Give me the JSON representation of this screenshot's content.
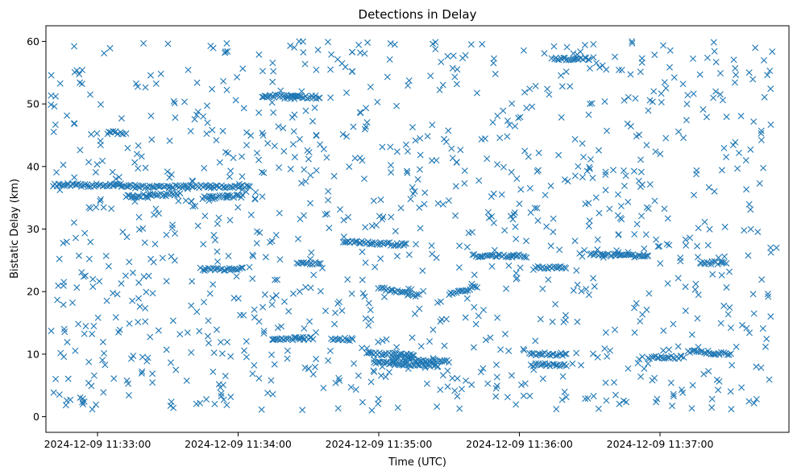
{
  "chart_data": {
    "type": "scatter",
    "title": "Detections in Delay",
    "xlabel": "Time (UTC)",
    "ylabel": "Bistatic Delay (km)",
    "marker": "x",
    "color": "#1f77b4",
    "grid": false,
    "legend": "none",
    "xlim": [
      "2024-12-09 11:32:38",
      "2024-12-09 11:37:55"
    ],
    "ylim": [
      -2.5,
      62.5
    ],
    "x_ticks": [
      "2024-12-09 11:33:00",
      "2024-12-09 11:34:00",
      "2024-12-09 11:35:00",
      "2024-12-09 11:36:00",
      "2024-12-09 11:37:00"
    ],
    "y_ticks": [
      0,
      10,
      20,
      30,
      40,
      50,
      60
    ],
    "time_range": [
      "2024-12-09 11:32:40",
      "2024-12-09 11:37:50"
    ],
    "series": [
      {
        "tracks": [
          {
            "t": [
              "2024-12-09 11:32:41",
              "2024-12-09 11:33:10"
            ],
            "y": [
              37.0,
              37.0
            ]
          },
          {
            "t": [
              "2024-12-09 11:33:10",
              "2024-12-09 11:34:05"
            ],
            "y": [
              36.8,
              36.8
            ]
          },
          {
            "t": [
              "2024-12-09 11:33:12",
              "2024-12-09 11:33:35"
            ],
            "y": [
              35.2,
              35.6
            ]
          },
          {
            "t": [
              "2024-12-09 11:33:45",
              "2024-12-09 11:34:02"
            ],
            "y": [
              35.0,
              35.3
            ]
          },
          {
            "t": [
              "2024-12-09 11:33:44",
              "2024-12-09 11:34:02"
            ],
            "y": [
              23.6,
              23.6
            ]
          },
          {
            "t": [
              "2024-12-09 11:34:10",
              "2024-12-09 11:34:25"
            ],
            "y": [
              51.2,
              51.4
            ]
          },
          {
            "t": [
              "2024-12-09 11:34:20",
              "2024-12-09 11:34:35"
            ],
            "y": [
              51.0,
              51.1
            ]
          },
          {
            "t": [
              "2024-12-09 11:34:15",
              "2024-12-09 11:34:32"
            ],
            "y": [
              12.5,
              12.5
            ]
          },
          {
            "t": [
              "2024-12-09 11:34:40",
              "2024-12-09 11:34:49"
            ],
            "y": [
              12.4,
              12.4
            ]
          },
          {
            "t": [
              "2024-12-09 11:34:25",
              "2024-12-09 11:34:35"
            ],
            "y": [
              24.5,
              24.5
            ]
          },
          {
            "t": [
              "2024-12-09 11:34:55",
              "2024-12-09 11:35:15"
            ],
            "y": [
              10.2,
              9.8
            ]
          },
          {
            "t": [
              "2024-12-09 11:34:58",
              "2024-12-09 11:35:25"
            ],
            "y": [
              8.6,
              8.2
            ]
          },
          {
            "t": [
              "2024-12-09 11:35:05",
              "2024-12-09 11:35:30"
            ],
            "y": [
              9.2,
              8.8
            ]
          },
          {
            "t": [
              "2024-12-09 11:35:00",
              "2024-12-09 11:35:17"
            ],
            "y": [
              20.6,
              19.3
            ]
          },
          {
            "t": [
              "2024-12-09 11:34:45",
              "2024-12-09 11:35:12"
            ],
            "y": [
              28.0,
              27.5
            ]
          },
          {
            "t": [
              "2024-12-09 11:35:30",
              "2024-12-09 11:35:42"
            ],
            "y": [
              19.5,
              20.8
            ]
          },
          {
            "t": [
              "2024-12-09 11:36:05",
              "2024-12-09 11:36:20"
            ],
            "y": [
              8.3,
              8.3
            ]
          },
          {
            "t": [
              "2024-12-09 11:36:04",
              "2024-12-09 11:36:20"
            ],
            "y": [
              10.0,
              10.0
            ]
          },
          {
            "t": [
              "2024-12-09 11:35:40",
              "2024-12-09 11:36:03"
            ],
            "y": [
              25.7,
              25.7
            ]
          },
          {
            "t": [
              "2024-12-09 11:36:07",
              "2024-12-09 11:36:20"
            ],
            "y": [
              23.8,
              23.8
            ]
          },
          {
            "t": [
              "2024-12-09 11:36:30",
              "2024-12-09 11:36:55"
            ],
            "y": [
              26.0,
              25.6
            ]
          },
          {
            "t": [
              "2024-12-09 11:36:55",
              "2024-12-09 11:37:10"
            ],
            "y": [
              9.5,
              9.5
            ]
          },
          {
            "t": [
              "2024-12-09 11:37:12",
              "2024-12-09 11:37:30"
            ],
            "y": [
              10.5,
              10.0
            ]
          },
          {
            "t": [
              "2024-12-09 11:37:17",
              "2024-12-09 11:37:28"
            ],
            "y": [
              24.6,
              24.6
            ]
          },
          {
            "t": [
              "2024-12-09 11:36:14",
              "2024-12-09 11:36:30"
            ],
            "y": [
              57.2,
              57.2
            ]
          },
          {
            "t": [
              "2024-12-09 11:33:04",
              "2024-12-09 11:33:12"
            ],
            "y": [
              45.4,
              45.4
            ]
          }
        ]
      }
    ]
  }
}
